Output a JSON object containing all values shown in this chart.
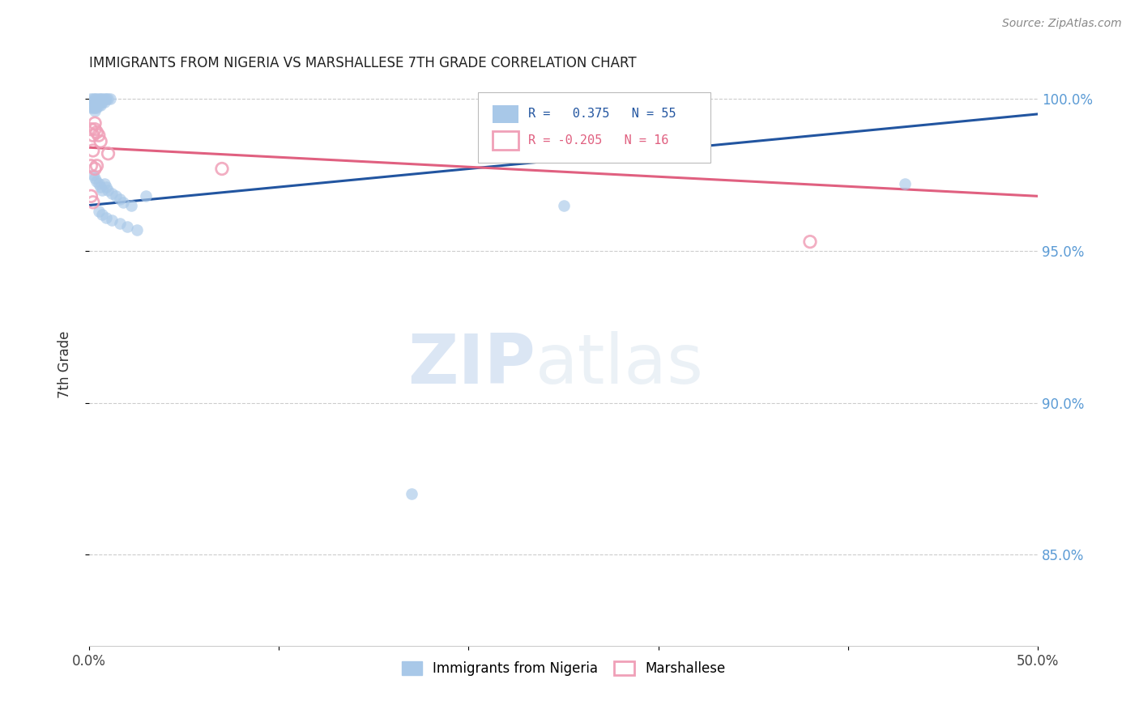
{
  "title": "IMMIGRANTS FROM NIGERIA VS MARSHALLESE 7TH GRADE CORRELATION CHART",
  "source": "Source: ZipAtlas.com",
  "xlabel_label": "Immigrants from Nigeria",
  "ylabel_label": "7th Grade",
  "legend_label1": "Immigrants from Nigeria",
  "legend_label2": "Marshallese",
  "R1": 0.375,
  "N1": 55,
  "R2": -0.205,
  "N2": 16,
  "xlim": [
    0.0,
    0.5
  ],
  "ylim": [
    0.82,
    1.005
  ],
  "xticks": [
    0.0,
    0.1,
    0.2,
    0.3,
    0.4,
    0.5
  ],
  "xticklabels": [
    "0.0%",
    "",
    "",
    "",
    "",
    "50.0%"
  ],
  "yticks": [
    0.85,
    0.9,
    0.95,
    1.0
  ],
  "yticklabels": [
    "85.0%",
    "90.0%",
    "95.0%",
    "100.0%"
  ],
  "color_blue": "#a8c8e8",
  "color_pink": "#f0a0b8",
  "line_blue": "#2255a0",
  "line_pink": "#e06080",
  "watermark_zip": "ZIP",
  "watermark_atlas": "atlas",
  "nigeria_x": [
    0.001,
    0.001,
    0.001,
    0.001,
    0.002,
    0.002,
    0.002,
    0.002,
    0.003,
    0.003,
    0.003,
    0.003,
    0.003,
    0.004,
    0.004,
    0.004,
    0.004,
    0.005,
    0.005,
    0.005,
    0.006,
    0.006,
    0.006,
    0.007,
    0.007,
    0.008,
    0.008,
    0.009,
    0.01,
    0.011,
    0.002,
    0.003,
    0.004,
    0.005,
    0.006,
    0.007,
    0.008,
    0.009,
    0.01,
    0.012,
    0.014,
    0.016,
    0.018,
    0.022,
    0.03,
    0.005,
    0.007,
    0.009,
    0.012,
    0.016,
    0.02,
    0.025,
    0.17,
    0.25,
    0.43
  ],
  "nigeria_y": [
    1.0,
    0.999,
    0.998,
    0.997,
    1.0,
    0.999,
    0.998,
    0.997,
    1.0,
    0.999,
    0.998,
    0.997,
    0.996,
    1.0,
    0.999,
    0.998,
    0.997,
    1.0,
    0.999,
    0.998,
    1.0,
    0.999,
    0.998,
    1.0,
    0.999,
    1.0,
    0.999,
    1.0,
    1.0,
    1.0,
    0.975,
    0.974,
    0.973,
    0.972,
    0.971,
    0.97,
    0.972,
    0.971,
    0.97,
    0.969,
    0.968,
    0.967,
    0.966,
    0.965,
    0.968,
    0.963,
    0.962,
    0.961,
    0.96,
    0.959,
    0.958,
    0.957,
    0.87,
    0.965,
    0.972
  ],
  "marshallese_x": [
    0.001,
    0.001,
    0.002,
    0.002,
    0.003,
    0.003,
    0.003,
    0.004,
    0.004,
    0.005,
    0.006,
    0.01,
    0.07,
    0.38,
    0.001,
    0.002
  ],
  "marshallese_y": [
    0.99,
    0.978,
    0.988,
    0.983,
    0.992,
    0.99,
    0.977,
    0.989,
    0.978,
    0.988,
    0.986,
    0.982,
    0.977,
    0.953,
    0.968,
    0.966
  ],
  "nig_line_x": [
    0.0,
    0.5
  ],
  "nig_line_y": [
    0.965,
    0.995
  ],
  "mar_line_x": [
    0.0,
    0.5
  ],
  "mar_line_y": [
    0.984,
    0.968
  ]
}
